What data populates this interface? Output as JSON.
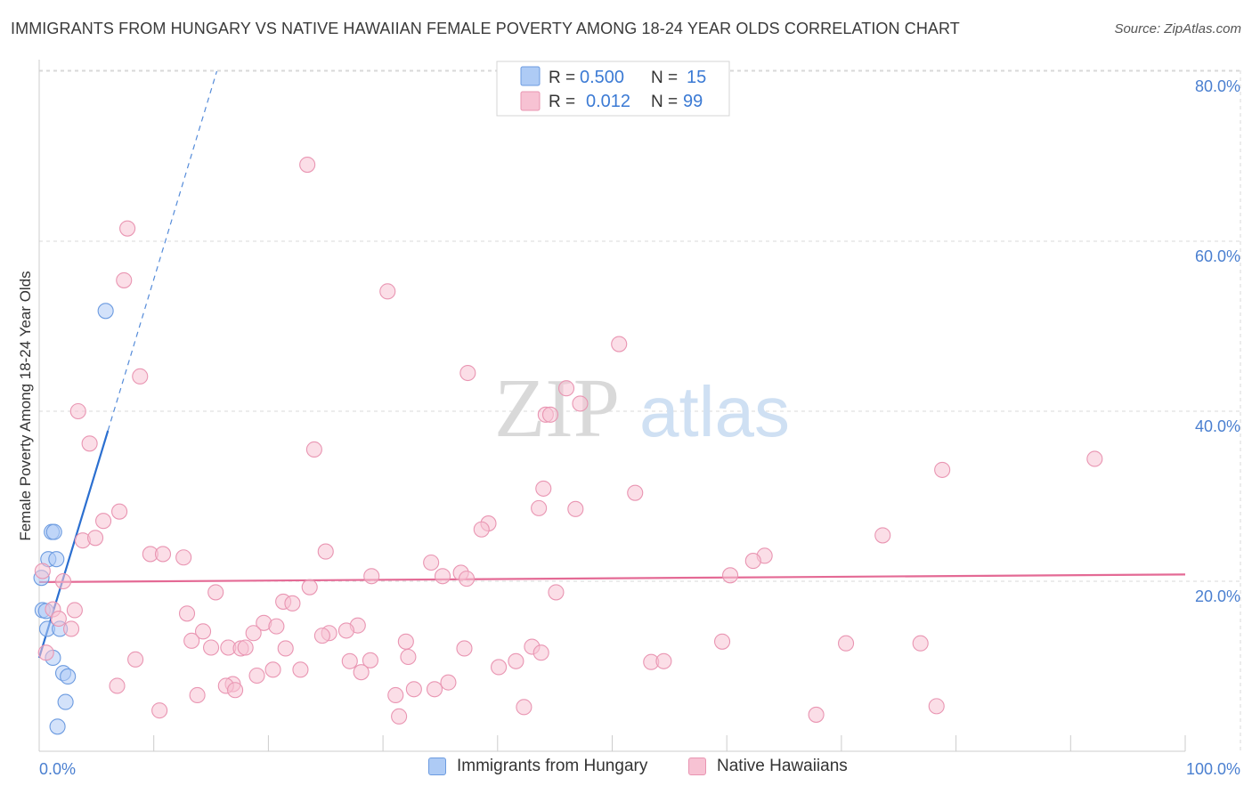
{
  "header": {
    "title": "IMMIGRANTS FROM HUNGARY VS NATIVE HAWAIIAN FEMALE POVERTY AMONG 18-24 YEAR OLDS CORRELATION CHART",
    "source": "Source: ZipAtlas.com"
  },
  "watermark": {
    "zip": "ZIP",
    "atlas": "atlas"
  },
  "legend_top": {
    "rows": [
      {
        "r_label": "R =",
        "r_value": "0.500",
        "n_label": "N =",
        "n_value": "15"
      },
      {
        "r_label": "R =",
        "r_value": "0.012",
        "n_label": "N =",
        "n_value": "99"
      }
    ]
  },
  "legend_bottom": {
    "items": [
      {
        "label": "Immigrants from Hungary"
      },
      {
        "label": "Native Hawaiians"
      }
    ]
  },
  "colors": {
    "blue_fill": "#aecbf5",
    "blue_stroke": "#6c9be0",
    "blue_line": "#2b6fd0",
    "pink_fill": "#f7c2d3",
    "pink_stroke": "#e995b2",
    "pink_line": "#e46a95",
    "axis_label": "#4a7fd0",
    "grid": "#d8d8d8"
  },
  "chart_data": {
    "type": "scatter",
    "title": "IMMIGRANTS FROM HUNGARY VS NATIVE HAWAIIAN FEMALE POVERTY AMONG 18-24 YEAR OLDS CORRELATION CHART",
    "xlabel": "",
    "ylabel": "Female Poverty Among 18-24 Year Olds",
    "xlim": [
      0,
      100
    ],
    "ylim": [
      0,
      80
    ],
    "x_tick_labels": [
      {
        "value": 0,
        "label": "0.0%"
      },
      {
        "value": 100,
        "label": "100.0%"
      }
    ],
    "y_tick_labels": [
      {
        "value": 20,
        "label": "20.0%"
      },
      {
        "value": 40,
        "label": "40.0%"
      },
      {
        "value": 60,
        "label": "60.0%"
      },
      {
        "value": 80,
        "label": "80.0%"
      }
    ],
    "legend_position": "top-center",
    "series": [
      {
        "name": "Immigrants from Hungary",
        "color": "blue",
        "R": 0.5,
        "N": 15,
        "trend": {
          "x0": 0,
          "y0": 11,
          "x1": 15.5,
          "y1": 80,
          "solid_until_x": 6.0
        },
        "points": [
          [
            5.8,
            51.8
          ],
          [
            1.1,
            25.8
          ],
          [
            1.3,
            25.8
          ],
          [
            0.8,
            22.6
          ],
          [
            1.5,
            22.6
          ],
          [
            0.2,
            20.4
          ],
          [
            0.3,
            16.6
          ],
          [
            0.6,
            16.5
          ],
          [
            0.7,
            14.4
          ],
          [
            1.8,
            14.4
          ],
          [
            1.2,
            11.0
          ],
          [
            2.1,
            9.2
          ],
          [
            2.5,
            8.8
          ],
          [
            2.3,
            5.8
          ],
          [
            1.6,
            2.9
          ]
        ]
      },
      {
        "name": "Native Hawaiians",
        "color": "pink",
        "R": 0.012,
        "N": 99,
        "trend": {
          "x0": 0,
          "y0": 19.9,
          "x1": 100,
          "y1": 20.8
        },
        "points": [
          [
            23.4,
            69.0
          ],
          [
            7.7,
            61.5
          ],
          [
            7.4,
            55.4
          ],
          [
            30.4,
            54.1
          ],
          [
            50.6,
            47.9
          ],
          [
            8.8,
            44.1
          ],
          [
            37.4,
            44.5
          ],
          [
            46.0,
            42.7
          ],
          [
            47.2,
            40.9
          ],
          [
            44.2,
            39.6
          ],
          [
            44.6,
            39.6
          ],
          [
            3.4,
            40.0
          ],
          [
            4.4,
            36.2
          ],
          [
            24.0,
            35.5
          ],
          [
            78.8,
            33.1
          ],
          [
            92.1,
            34.4
          ],
          [
            44.0,
            30.9
          ],
          [
            52.0,
            30.4
          ],
          [
            43.6,
            28.6
          ],
          [
            46.8,
            28.5
          ],
          [
            7.0,
            28.2
          ],
          [
            5.6,
            27.1
          ],
          [
            39.2,
            26.8
          ],
          [
            38.6,
            26.1
          ],
          [
            73.6,
            25.4
          ],
          [
            3.8,
            24.8
          ],
          [
            4.9,
            25.1
          ],
          [
            25.0,
            23.5
          ],
          [
            9.7,
            23.2
          ],
          [
            10.8,
            23.2
          ],
          [
            12.6,
            22.8
          ],
          [
            63.3,
            23.0
          ],
          [
            62.3,
            22.4
          ],
          [
            34.2,
            22.2
          ],
          [
            36.8,
            21.0
          ],
          [
            29.0,
            20.6
          ],
          [
            35.2,
            20.6
          ],
          [
            37.3,
            20.3
          ],
          [
            60.3,
            20.7
          ],
          [
            2.1,
            20.0
          ],
          [
            0.3,
            21.2
          ],
          [
            23.6,
            19.3
          ],
          [
            15.4,
            18.7
          ],
          [
            45.1,
            18.7
          ],
          [
            21.3,
            17.6
          ],
          [
            22.1,
            17.4
          ],
          [
            1.2,
            16.7
          ],
          [
            3.1,
            16.6
          ],
          [
            1.7,
            15.6
          ],
          [
            12.9,
            16.2
          ],
          [
            19.6,
            15.1
          ],
          [
            20.7,
            14.7
          ],
          [
            27.8,
            14.8
          ],
          [
            26.8,
            14.2
          ],
          [
            14.3,
            14.1
          ],
          [
            18.7,
            13.9
          ],
          [
            25.3,
            13.9
          ],
          [
            24.7,
            13.6
          ],
          [
            2.8,
            14.4
          ],
          [
            13.3,
            13.0
          ],
          [
            16.5,
            12.2
          ],
          [
            17.6,
            12.1
          ],
          [
            15.0,
            12.2
          ],
          [
            18.0,
            12.2
          ],
          [
            21.5,
            12.1
          ],
          [
            32.0,
            12.9
          ],
          [
            37.1,
            12.1
          ],
          [
            43.0,
            12.3
          ],
          [
            59.6,
            12.9
          ],
          [
            70.4,
            12.7
          ],
          [
            76.9,
            12.7
          ],
          [
            8.4,
            10.8
          ],
          [
            27.1,
            10.6
          ],
          [
            28.9,
            10.7
          ],
          [
            32.2,
            11.1
          ],
          [
            43.8,
            11.6
          ],
          [
            41.6,
            10.6
          ],
          [
            53.4,
            10.5
          ],
          [
            54.5,
            10.6
          ],
          [
            20.4,
            9.6
          ],
          [
            22.8,
            9.6
          ],
          [
            40.1,
            9.9
          ],
          [
            28.1,
            9.3
          ],
          [
            19.0,
            8.9
          ],
          [
            16.9,
            7.9
          ],
          [
            6.8,
            7.7
          ],
          [
            16.3,
            7.7
          ],
          [
            17.1,
            7.2
          ],
          [
            34.5,
            7.3
          ],
          [
            32.7,
            7.3
          ],
          [
            35.7,
            8.1
          ],
          [
            13.8,
            6.6
          ],
          [
            31.1,
            6.6
          ],
          [
            10.5,
            4.8
          ],
          [
            31.4,
            4.1
          ],
          [
            42.3,
            5.2
          ],
          [
            67.8,
            4.3
          ],
          [
            78.3,
            5.3
          ],
          [
            0.6,
            11.6
          ]
        ]
      }
    ]
  }
}
